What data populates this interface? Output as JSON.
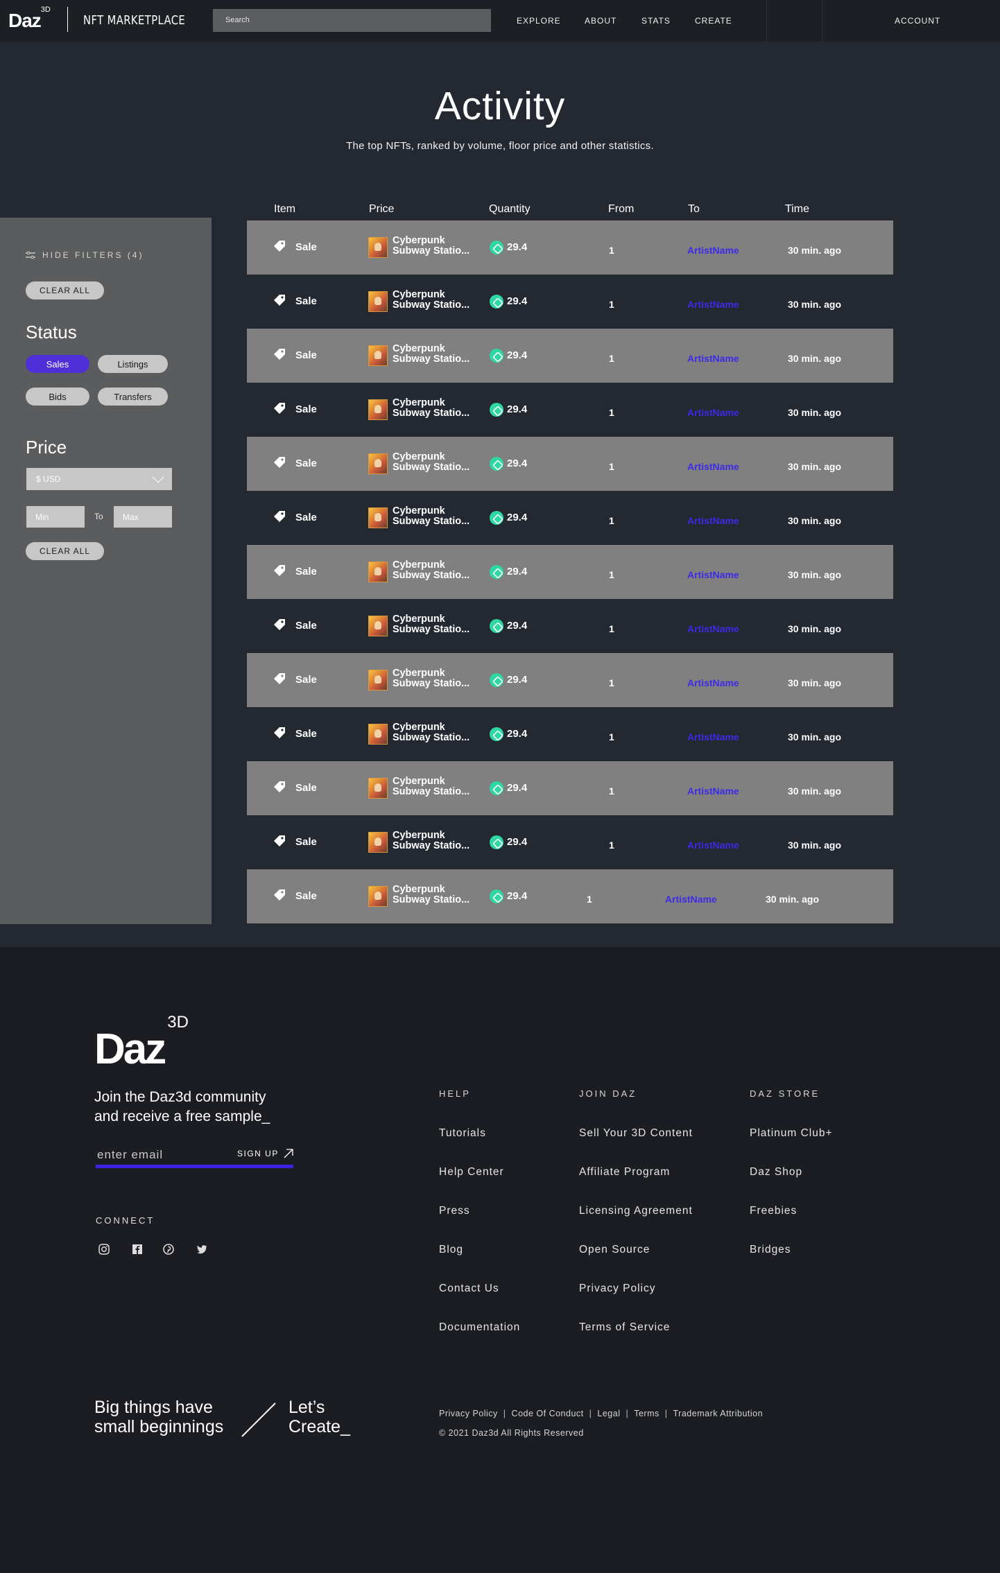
{
  "nav": {
    "logo": "Daz",
    "logo_sup": "3D",
    "brand": "NFT MARKETPLACE",
    "search_placeholder": "Search",
    "links": [
      "EXPLORE",
      "ABOUT",
      "STATS",
      "CREATE"
    ],
    "account": "ACCOUNT"
  },
  "hero": {
    "title": "Activity",
    "subtitle": "The top NFTs, ranked by volume, floor price and other statistics."
  },
  "filters": {
    "hide_label": "HIDE FILTERS (4)",
    "clear_all": "CLEAR ALL",
    "status_heading": "Status",
    "status_options": [
      "Sales",
      "Listings",
      "Bids",
      "Transfers"
    ],
    "active_status": "Sales",
    "price_heading": "Price",
    "currency": "$ USD",
    "min_placeholder": "Min",
    "to_label": "To",
    "max_placeholder": "Max",
    "clear_all_2": "CLEAR ALL"
  },
  "table": {
    "headers": [
      "Item",
      "Price",
      "Quantity",
      "From",
      "To",
      "Time"
    ],
    "rows": [
      {
        "type": "Sale",
        "name_1": "Cyberpunk",
        "name_2": "Subway Statio...",
        "price": "29.4",
        "from": "1",
        "to": "ArtistName",
        "time": "30 min. ago"
      },
      {
        "type": "Sale",
        "name_1": "Cyberpunk",
        "name_2": "Subway Statio...",
        "price": "29.4",
        "from": "1",
        "to": "ArtistName",
        "time": "30 min. ago"
      },
      {
        "type": "Sale",
        "name_1": "Cyberpunk",
        "name_2": "Subway Statio...",
        "price": "29.4",
        "from": "1",
        "to": "ArtistName",
        "time": "30 min. ago"
      },
      {
        "type": "Sale",
        "name_1": "Cyberpunk",
        "name_2": "Subway Statio...",
        "price": "29.4",
        "from": "1",
        "to": "ArtistName",
        "time": "30 min. ago"
      },
      {
        "type": "Sale",
        "name_1": "Cyberpunk",
        "name_2": "Subway Statio...",
        "price": "29.4",
        "from": "1",
        "to": "ArtistName",
        "time": "30 min. ago"
      },
      {
        "type": "Sale",
        "name_1": "Cyberpunk",
        "name_2": "Subway Statio...",
        "price": "29.4",
        "from": "1",
        "to": "ArtistName",
        "time": "30 min. ago"
      },
      {
        "type": "Sale",
        "name_1": "Cyberpunk",
        "name_2": "Subway Statio...",
        "price": "29.4",
        "from": "1",
        "to": "ArtistName",
        "time": "30 min. ago"
      },
      {
        "type": "Sale",
        "name_1": "Cyberpunk",
        "name_2": "Subway Statio...",
        "price": "29.4",
        "from": "1",
        "to": "ArtistName",
        "time": "30 min. ago"
      },
      {
        "type": "Sale",
        "name_1": "Cyberpunk",
        "name_2": "Subway Statio...",
        "price": "29.4",
        "from": "1",
        "to": "ArtistName",
        "time": "30 min. ago"
      },
      {
        "type": "Sale",
        "name_1": "Cyberpunk",
        "name_2": "Subway Statio...",
        "price": "29.4",
        "from": "1",
        "to": "ArtistName",
        "time": "30 min. ago"
      },
      {
        "type": "Sale",
        "name_1": "Cyberpunk",
        "name_2": "Subway Statio...",
        "price": "29.4",
        "from": "1",
        "to": "ArtistName",
        "time": "30 min. ago"
      },
      {
        "type": "Sale",
        "name_1": "Cyberpunk",
        "name_2": "Subway Statio...",
        "price": "29.4",
        "from": "1",
        "to": "ArtistName",
        "time": "30 min. ago"
      },
      {
        "type": "Sale",
        "name_1": "Cyberpunk",
        "name_2": "Subway Statio...",
        "price": "29.4",
        "from": "1",
        "to": "ArtistName",
        "time": "30 min. ago"
      }
    ]
  },
  "footer": {
    "logo": "Daz",
    "logo_sup": "3D",
    "join_line_1": "Join the Daz3d community",
    "join_line_2": "and receive a free sample_",
    "email_placeholder": "enter email",
    "signup": "SIGN UP",
    "connect": "CONNECT",
    "social_icons": [
      "instagram-icon",
      "facebook-icon",
      "pinterest-icon",
      "twitter-icon"
    ],
    "columns": [
      {
        "heading": "HELP",
        "links": [
          "Tutorials",
          "Help Center",
          "Press",
          "Blog",
          "Contact Us",
          "Documentation"
        ]
      },
      {
        "heading": "JOIN DAZ",
        "links": [
          "Sell Your 3D Content",
          "Affiliate Program",
          "Licensing Agreement",
          "Open Source",
          "Privacy Policy",
          "Terms of Service"
        ]
      },
      {
        "heading": "DAZ STORE",
        "links": [
          "Platinum Club+",
          "Daz Shop",
          "Freebies",
          "Bridges"
        ]
      }
    ],
    "tagline_1": "Big things have",
    "tagline_2": "small beginnings",
    "lets_1": "Let’s",
    "lets_2": "Create_",
    "legal_links": [
      "Privacy Policy",
      "Code Of Conduct",
      "Legal",
      "Terms",
      "Trademark Attribution"
    ],
    "copyright": "© 2021 Daz3d All Rights Reserved"
  },
  "colors": {
    "accent": "#4f2fd8",
    "link": "#3d2ae6",
    "eth": "#2fd8a2",
    "background": "#242931",
    "footer_bg": "#1b1d22"
  }
}
